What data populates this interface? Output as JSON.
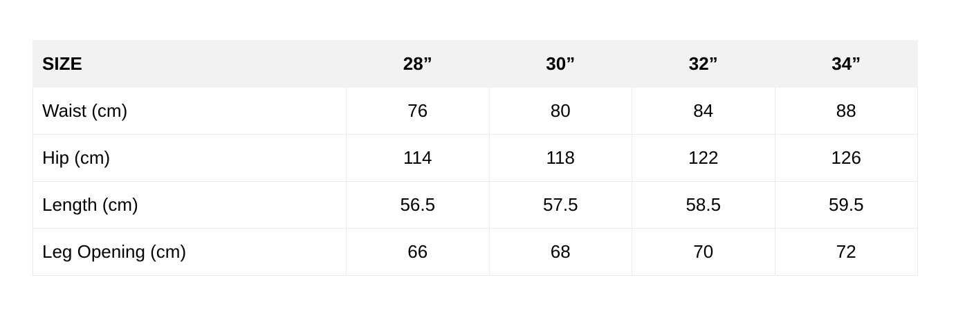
{
  "table": {
    "headers": [
      "SIZE",
      "28”",
      "30”",
      "32”",
      "34”"
    ],
    "rows": [
      {
        "label": "Waist (cm)",
        "values": [
          "76",
          "80",
          "84",
          "88"
        ]
      },
      {
        "label": "Hip (cm)",
        "values": [
          "114",
          "118",
          "122",
          "126"
        ]
      },
      {
        "label": "Length (cm)",
        "values": [
          "56.5",
          "57.5",
          "58.5",
          "59.5"
        ]
      },
      {
        "label": "Leg Opening (cm)",
        "values": [
          "66",
          "68",
          "70",
          "72"
        ]
      }
    ]
  }
}
